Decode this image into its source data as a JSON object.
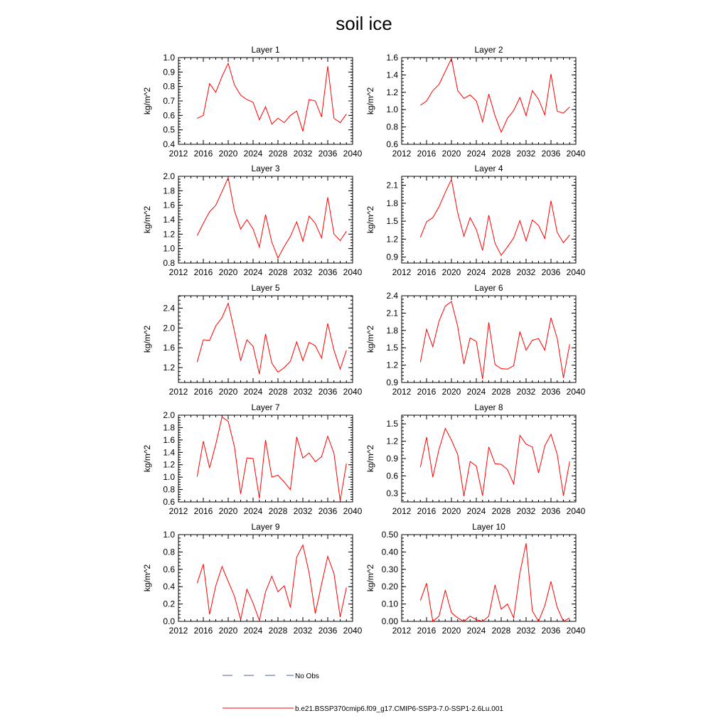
{
  "title": "soil ice",
  "legend": {
    "placement": "bottom",
    "entries": [
      {
        "label": "No Obs",
        "color": "#4a5fb0",
        "style": "dashed"
      },
      {
        "label": "b.e21.BSSP370cmip6.f09_g17.CMIP6-SSP3-7.0-SSP1-2.6Lu.001",
        "color": "#ff0000",
        "style": "solid"
      }
    ]
  },
  "chart_data": [
    {
      "type": "line",
      "title": "Layer 1",
      "ylabel": "kg/m^2",
      "xlim": [
        2012,
        2040
      ],
      "xticks": [
        "2012",
        "2016",
        "2020",
        "2024",
        "2028",
        "2032",
        "2036",
        "2040"
      ],
      "ylim": [
        0.4,
        1.0
      ],
      "yticks": [
        "0.4",
        "0.5",
        "0.6",
        "0.7",
        "0.8",
        "0.9",
        "1.0"
      ],
      "yticks_val": [
        0.4,
        0.5,
        0.6,
        0.7,
        0.8,
        0.9,
        1.0
      ],
      "yminor": 0.02,
      "x": [
        2015,
        2016,
        2017,
        2018,
        2019,
        2020,
        2021,
        2022,
        2023,
        2024,
        2025,
        2026,
        2027,
        2028,
        2029,
        2030,
        2031,
        2032,
        2033,
        2034,
        2035,
        2036,
        2037,
        2038,
        2039
      ],
      "series": [
        {
          "color": "#ff0000",
          "values": [
            0.58,
            0.6,
            0.82,
            0.76,
            0.87,
            0.96,
            0.81,
            0.74,
            0.71,
            0.69,
            0.57,
            0.66,
            0.54,
            0.58,
            0.55,
            0.6,
            0.63,
            0.49,
            0.71,
            0.7,
            0.59,
            0.94,
            0.58,
            0.55,
            0.61
          ]
        }
      ]
    },
    {
      "type": "line",
      "title": "Layer 2",
      "ylabel": "kg/m^2",
      "xlim": [
        2012,
        2040
      ],
      "xticks": [
        "2012",
        "2016",
        "2020",
        "2024",
        "2028",
        "2032",
        "2036",
        "2040"
      ],
      "ylim": [
        0.6,
        1.6
      ],
      "yticks": [
        "0.6",
        "0.8",
        "1.0",
        "1.2",
        "1.4",
        "1.6"
      ],
      "yticks_val": [
        0.6,
        0.8,
        1.0,
        1.2,
        1.4,
        1.6
      ],
      "yminor": 0.04,
      "x": [
        2015,
        2016,
        2017,
        2018,
        2019,
        2020,
        2021,
        2022,
        2023,
        2024,
        2025,
        2026,
        2027,
        2028,
        2029,
        2030,
        2031,
        2032,
        2033,
        2034,
        2035,
        2036,
        2037,
        2038,
        2039
      ],
      "series": [
        {
          "color": "#ff0000",
          "values": [
            1.05,
            1.1,
            1.22,
            1.29,
            1.44,
            1.59,
            1.22,
            1.13,
            1.17,
            1.1,
            0.86,
            1.18,
            0.93,
            0.74,
            0.9,
            0.99,
            1.14,
            0.93,
            1.22,
            1.12,
            0.94,
            1.41,
            0.98,
            0.96,
            1.03
          ]
        }
      ]
    },
    {
      "type": "line",
      "title": "Layer 3",
      "ylabel": "kg/m^2",
      "xlim": [
        2012,
        2040
      ],
      "xticks": [
        "2012",
        "2016",
        "2020",
        "2024",
        "2028",
        "2032",
        "2036",
        "2040"
      ],
      "ylim": [
        0.8,
        2.0
      ],
      "yticks": [
        "0.8",
        "1.0",
        "1.2",
        "1.4",
        "1.6",
        "1.8",
        "2.0"
      ],
      "yticks_val": [
        0.8,
        1.0,
        1.2,
        1.4,
        1.6,
        1.8,
        2.0
      ],
      "yminor": 0.04,
      "x": [
        2015,
        2016,
        2017,
        2018,
        2019,
        2020,
        2021,
        2022,
        2023,
        2024,
        2025,
        2026,
        2027,
        2028,
        2029,
        2030,
        2031,
        2032,
        2033,
        2034,
        2035,
        2036,
        2037,
        2038,
        2039
      ],
      "series": [
        {
          "color": "#ff0000",
          "values": [
            1.18,
            1.35,
            1.51,
            1.6,
            1.79,
            1.98,
            1.52,
            1.27,
            1.4,
            1.27,
            1.02,
            1.47,
            1.09,
            0.87,
            1.03,
            1.17,
            1.37,
            1.1,
            1.45,
            1.35,
            1.15,
            1.71,
            1.2,
            1.11,
            1.24
          ]
        }
      ]
    },
    {
      "type": "line",
      "title": "Layer 4",
      "ylabel": "kg/m^2",
      "xlim": [
        2012,
        2040
      ],
      "xticks": [
        "2012",
        "2016",
        "2020",
        "2024",
        "2028",
        "2032",
        "2036",
        "2040"
      ],
      "ylim": [
        0.8,
        2.25
      ],
      "yticks": [
        "0.9",
        "1.2",
        "1.5",
        "1.8",
        "2.1"
      ],
      "yticks_val": [
        0.9,
        1.2,
        1.5,
        1.8,
        2.1
      ],
      "yminor": 0.05,
      "x": [
        2015,
        2016,
        2017,
        2018,
        2019,
        2020,
        2021,
        2022,
        2023,
        2024,
        2025,
        2026,
        2027,
        2028,
        2029,
        2030,
        2031,
        2032,
        2033,
        2034,
        2035,
        2036,
        2037,
        2038,
        2039
      ],
      "series": [
        {
          "color": "#ff0000",
          "values": [
            1.23,
            1.49,
            1.56,
            1.74,
            1.98,
            2.2,
            1.64,
            1.25,
            1.56,
            1.36,
            1.01,
            1.6,
            1.13,
            0.93,
            1.07,
            1.22,
            1.51,
            1.17,
            1.52,
            1.43,
            1.21,
            1.84,
            1.31,
            1.14,
            1.27
          ]
        }
      ]
    },
    {
      "type": "line",
      "title": "Layer 5",
      "ylabel": "kg/m^2",
      "xlim": [
        2012,
        2040
      ],
      "xticks": [
        "2012",
        "2016",
        "2020",
        "2024",
        "2028",
        "2032",
        "2036",
        "2040"
      ],
      "ylim": [
        0.9,
        2.65
      ],
      "yticks": [
        "1.2",
        "1.6",
        "2.0",
        "2.4"
      ],
      "yticks_val": [
        1.2,
        1.6,
        2.0,
        2.4
      ],
      "yminor": 0.08,
      "x": [
        2015,
        2016,
        2017,
        2018,
        2019,
        2020,
        2021,
        2022,
        2023,
        2024,
        2025,
        2026,
        2027,
        2028,
        2029,
        2030,
        2031,
        2032,
        2033,
        2034,
        2035,
        2036,
        2037,
        2038,
        2039
      ],
      "series": [
        {
          "color": "#ff0000",
          "values": [
            1.31,
            1.76,
            1.75,
            2.04,
            2.21,
            2.5,
            1.93,
            1.34,
            1.76,
            1.63,
            1.07,
            1.88,
            1.29,
            1.11,
            1.2,
            1.33,
            1.72,
            1.34,
            1.71,
            1.64,
            1.39,
            2.09,
            1.55,
            1.17,
            1.55
          ]
        }
      ]
    },
    {
      "type": "line",
      "title": "Layer 6",
      "ylabel": "kg/m^2",
      "xlim": [
        2012,
        2040
      ],
      "xticks": [
        "2012",
        "2016",
        "2020",
        "2024",
        "2028",
        "2032",
        "2036",
        "2040"
      ],
      "ylim": [
        0.9,
        2.4
      ],
      "yticks": [
        "0.9",
        "1.2",
        "1.5",
        "1.8",
        "2.1",
        "2.4"
      ],
      "yticks_val": [
        0.9,
        1.2,
        1.5,
        1.8,
        2.1,
        2.4
      ],
      "yminor": 0.06,
      "x": [
        2015,
        2016,
        2017,
        2018,
        2019,
        2020,
        2021,
        2022,
        2023,
        2024,
        2025,
        2026,
        2027,
        2028,
        2029,
        2030,
        2031,
        2032,
        2033,
        2034,
        2035,
        2036,
        2037,
        2038,
        2039
      ],
      "series": [
        {
          "color": "#ff0000",
          "values": [
            1.25,
            1.82,
            1.52,
            1.96,
            2.22,
            2.3,
            1.87,
            1.22,
            1.67,
            1.61,
            0.96,
            1.94,
            1.21,
            1.14,
            1.13,
            1.19,
            1.78,
            1.46,
            1.63,
            1.66,
            1.46,
            2.02,
            1.66,
            0.98,
            1.56
          ]
        }
      ]
    },
    {
      "type": "line",
      "title": "Layer 7",
      "ylabel": "kg/m^2",
      "xlim": [
        2012,
        2040
      ],
      "xticks": [
        "2012",
        "2016",
        "2020",
        "2024",
        "2028",
        "2032",
        "2036",
        "2040"
      ],
      "ylim": [
        0.6,
        2.0
      ],
      "yticks": [
        "0.6",
        "0.8",
        "1.0",
        "1.2",
        "1.4",
        "1.6",
        "1.8",
        "2.0"
      ],
      "yticks_val": [
        0.6,
        0.8,
        1.0,
        1.2,
        1.4,
        1.6,
        1.8,
        2.0
      ],
      "yminor": 0.04,
      "x": [
        2015,
        2016,
        2017,
        2018,
        2019,
        2020,
        2021,
        2022,
        2023,
        2024,
        2025,
        2026,
        2027,
        2028,
        2029,
        2030,
        2031,
        2032,
        2033,
        2034,
        2035,
        2036,
        2037,
        2038,
        2039
      ],
      "series": [
        {
          "color": "#ff0000",
          "values": [
            1.01,
            1.58,
            1.15,
            1.53,
            1.97,
            1.9,
            1.49,
            0.73,
            1.31,
            1.3,
            0.66,
            1.6,
            1.0,
            1.03,
            0.92,
            0.8,
            1.65,
            1.31,
            1.39,
            1.25,
            1.33,
            1.66,
            1.38,
            0.62,
            1.22
          ]
        }
      ]
    },
    {
      "type": "line",
      "title": "Layer 8",
      "ylabel": "kg/m^2",
      "xlim": [
        2012,
        2040
      ],
      "xticks": [
        "2012",
        "2016",
        "2020",
        "2024",
        "2028",
        "2032",
        "2036",
        "2040"
      ],
      "ylim": [
        0.15,
        1.65
      ],
      "yticks": [
        "0.3",
        "0.6",
        "0.9",
        "1.2",
        "1.5"
      ],
      "yticks_val": [
        0.3,
        0.6,
        0.9,
        1.2,
        1.5
      ],
      "yminor": 0.06,
      "x": [
        2015,
        2016,
        2017,
        2018,
        2019,
        2020,
        2021,
        2022,
        2023,
        2024,
        2025,
        2026,
        2027,
        2028,
        2029,
        2030,
        2031,
        2032,
        2033,
        2034,
        2035,
        2036,
        2037,
        2038,
        2039
      ],
      "series": [
        {
          "color": "#ff0000",
          "values": [
            0.75,
            1.27,
            0.58,
            1.06,
            1.42,
            1.22,
            0.97,
            0.25,
            0.85,
            0.77,
            0.26,
            1.1,
            0.81,
            0.8,
            0.71,
            0.46,
            1.3,
            1.15,
            1.1,
            0.65,
            1.12,
            1.32,
            0.97,
            0.26,
            0.85
          ]
        }
      ]
    },
    {
      "type": "line",
      "title": "Layer 9",
      "ylabel": "kg/m^2",
      "xlim": [
        2012,
        2040
      ],
      "xticks": [
        "2012",
        "2016",
        "2020",
        "2024",
        "2028",
        "2032",
        "2036",
        "2040"
      ],
      "ylim": [
        0.0,
        1.0
      ],
      "yticks": [
        "0.0",
        "0.2",
        "0.4",
        "0.6",
        "0.8",
        "1.0"
      ],
      "yticks_val": [
        0.0,
        0.2,
        0.4,
        0.6,
        0.8,
        1.0
      ],
      "yminor": 0.04,
      "x": [
        2015,
        2016,
        2017,
        2018,
        2019,
        2020,
        2021,
        2022,
        2023,
        2024,
        2025,
        2026,
        2027,
        2028,
        2029,
        2030,
        2031,
        2032,
        2033,
        2034,
        2035,
        2036,
        2037,
        2038,
        2039
      ],
      "series": [
        {
          "color": "#ff0000",
          "values": [
            0.44,
            0.66,
            0.08,
            0.41,
            0.63,
            0.46,
            0.29,
            0.02,
            0.37,
            0.21,
            0.01,
            0.34,
            0.52,
            0.34,
            0.41,
            0.16,
            0.74,
            0.88,
            0.56,
            0.09,
            0.43,
            0.75,
            0.55,
            0.05,
            0.39
          ]
        }
      ]
    },
    {
      "type": "line",
      "title": "Layer 10",
      "ylabel": "kg/m^2",
      "xlim": [
        2012,
        2040
      ],
      "xticks": [
        "2012",
        "2016",
        "2020",
        "2024",
        "2028",
        "2032",
        "2036",
        "2040"
      ],
      "ylim": [
        0.0,
        0.5
      ],
      "yticks": [
        "0.00",
        "0.10",
        "0.20",
        "0.30",
        "0.40",
        "0.50"
      ],
      "yticks_val": [
        0.0,
        0.1,
        0.2,
        0.3,
        0.4,
        0.5
      ],
      "yminor": 0.02,
      "x": [
        2015,
        2016,
        2017,
        2018,
        2019,
        2020,
        2021,
        2022,
        2023,
        2024,
        2025,
        2026,
        2027,
        2028,
        2029,
        2030,
        2031,
        2032,
        2033,
        2034,
        2035,
        2036,
        2037,
        2038,
        2039
      ],
      "series": [
        {
          "color": "#ff0000",
          "values": [
            0.12,
            0.22,
            0.0,
            0.03,
            0.18,
            0.05,
            0.02,
            0.0,
            0.03,
            0.01,
            0.0,
            0.03,
            0.21,
            0.07,
            0.1,
            0.02,
            0.28,
            0.45,
            0.06,
            0.0,
            0.09,
            0.23,
            0.08,
            0.0,
            0.02
          ]
        }
      ]
    }
  ]
}
